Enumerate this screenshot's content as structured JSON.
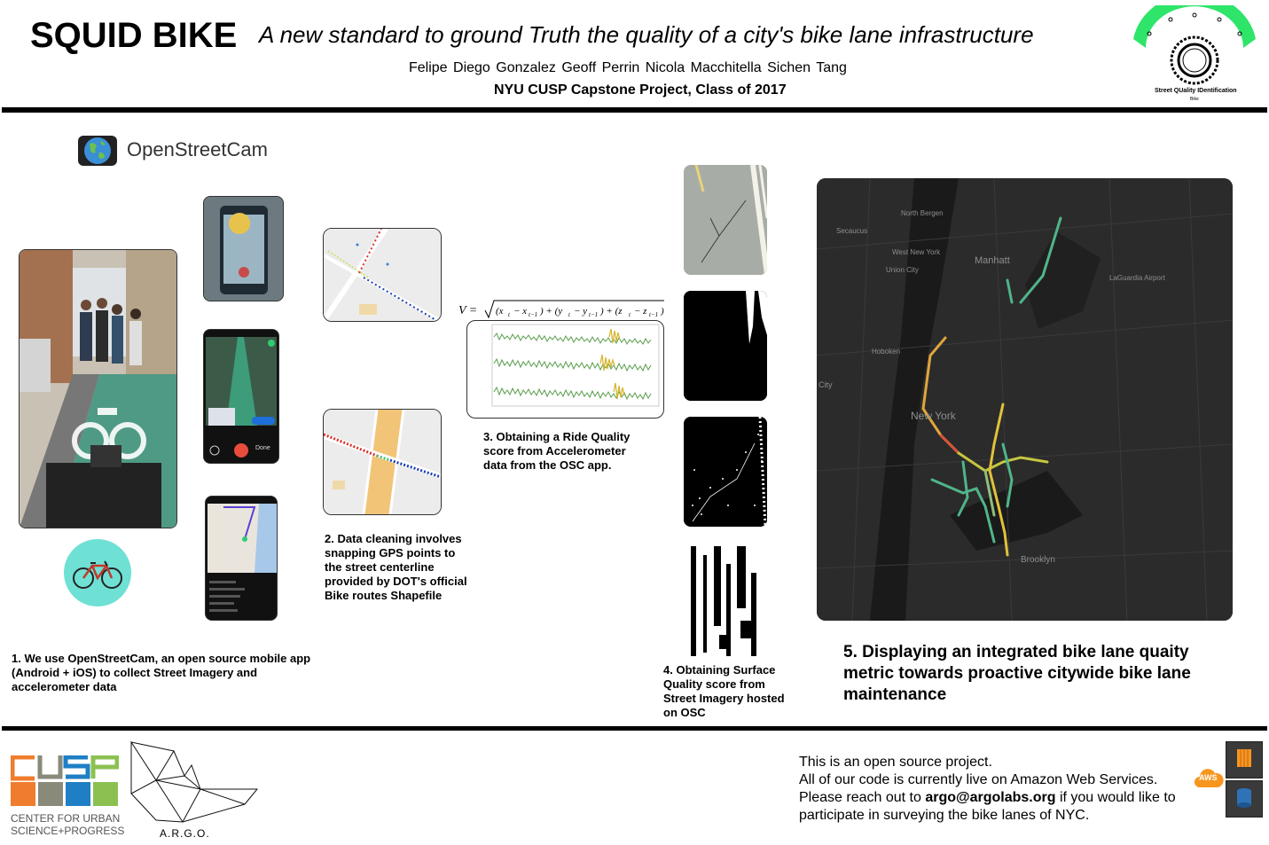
{
  "header": {
    "title": "SQUID BIKE",
    "subtitle": "A new standard to ground Truth the quality of a city's bike lane infrastructure",
    "authors": "Felipe Diego Gonzalez  Geoff Perrin  Nicola Macchitella  Sichen Tang",
    "affiliation": "NYU CUSP Capstone Project, Class of 2017",
    "logo_caption": "Street QUality IDentification",
    "logo_caption_small": "Bike"
  },
  "brand": {
    "osc_name": "OpenStreetCam"
  },
  "steps": {
    "step1": "1. We use OpenStreetCam, an open source mobile app (Android + iOS) to collect Street Imagery and accelerometer data",
    "step2": "2. Data cleaning involves snapping GPS points to the street centerline provided by DOT's official Bike routes Shapefile",
    "step3": "3. Obtaining a Ride Quality score from Accelerometer data from the OSC app.",
    "step4": "4. Obtaining Surface Quality score from Street Imagery hosted on OSC",
    "step5": "5. Displaying an integrated bike lane quaity metric towards proactive citywide bike lane maintenance"
  },
  "phone_ui": {
    "done_label": "Done"
  },
  "map_labels": {
    "north_bergen": "North Bergen",
    "west_new_york": "West New York",
    "union_city": "Union City",
    "manhattan": "Manhatt",
    "laguardia": "LaGuardia Airport",
    "hoboken": "Hoboken",
    "new_york": "New York",
    "brooklyn": "Brooklyn",
    "city": "City",
    "secaucus": "Secaucus"
  },
  "footer": {
    "cusp_name": "CENTER FOR URBAN SCIENCE+PROGRESS",
    "argo_name": "A.R.G.O.",
    "line1": "This is an open source project.",
    "line2": "All of our code is currently live on Amazon Web Services.",
    "line3_prefix": "Please reach out to ",
    "email": "argo@argolabs.org",
    "line3_suffix": " if you would like to",
    "line4": "participate in surveying the bike lanes of NYC.",
    "aws_label": "AWS"
  },
  "colors": {
    "accent_green": "#2ee56a",
    "cusp_orange": "#ef7d2d",
    "cusp_blue": "#1f7fc4",
    "cusp_green": "#8cc152",
    "cusp_gray": "#8a8a7a",
    "map_bg": "#262626"
  }
}
